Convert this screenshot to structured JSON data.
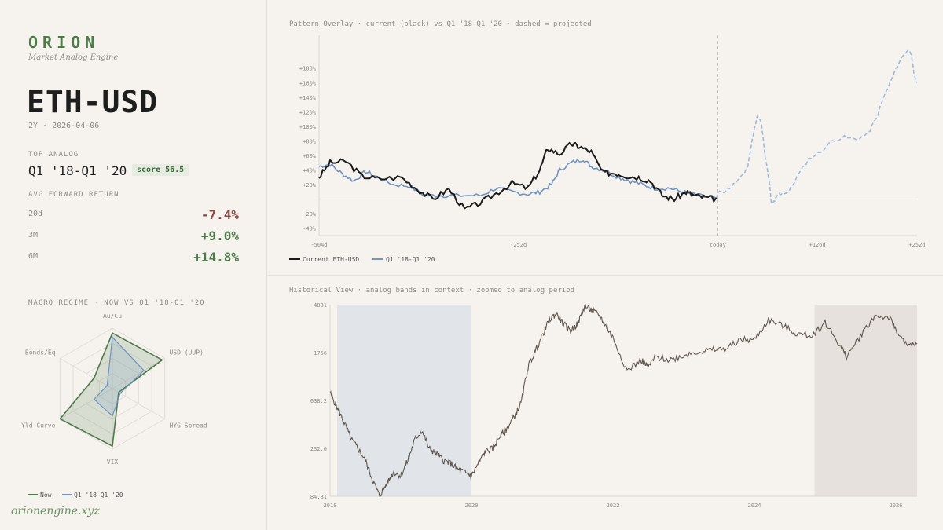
{
  "brand": {
    "name": "ORION",
    "tagline": "Market Analog Engine",
    "site": "orionengine.xyz"
  },
  "asset": {
    "ticker": "ETH-USD",
    "meta": "2Y · 2026-04-06"
  },
  "top_analog": {
    "label": "TOP ANALOG",
    "name": "Q1 '18-Q1 '20",
    "score": "score 56.5"
  },
  "forward": {
    "label": "AVG FORWARD RETURN",
    "rows": [
      {
        "k": "20d",
        "v": "-7.4%"
      },
      {
        "k": "3M",
        "v": "+9.0%"
      },
      {
        "k": "6M",
        "v": "+14.8%"
      }
    ]
  },
  "colors": {
    "now": "#4e7a4a",
    "analog": "#6f93c2",
    "current": "#1a1a1a",
    "historical": "#5f564e",
    "neg": "#8b4a4a",
    "pos": "#4e7a4a"
  },
  "chart_data": [
    {
      "type": "radar",
      "title": "MACRO REGIME · NOW VS Q1 '18-Q1 '20",
      "axes": [
        "Au/Cu",
        "USD (UUP)",
        "HYG Spread",
        "VIX",
        "Yld Curve",
        "Bonds/Eq"
      ],
      "series": [
        {
          "name": "Now",
          "values": [
            0.92,
            0.95,
            0.12,
            0.95,
            1.0,
            0.35
          ]
        },
        {
          "name": "Q1 '18-Q1 '20",
          "values": [
            0.85,
            0.6,
            0.15,
            0.45,
            0.35,
            0.1
          ]
        }
      ],
      "legend": [
        "Now",
        "Q1 '18-Q1 '20"
      ]
    },
    {
      "type": "line",
      "title": "Pattern Overlay · current (black) vs Q1 '18-Q1 '20 · dashed = projected",
      "xlim": [
        -504,
        252
      ],
      "ylim": [
        -50,
        225
      ],
      "xticks": [
        {
          "v": -504,
          "l": "-504d"
        },
        {
          "v": -252,
          "l": "-252d"
        },
        {
          "v": 0,
          "l": "today"
        },
        {
          "v": 126,
          "l": "+126d"
        },
        {
          "v": 252,
          "l": "+252d"
        }
      ],
      "yticks": [
        {
          "v": 180,
          "l": "+180%"
        },
        {
          "v": 160,
          "l": "+160%"
        },
        {
          "v": 140,
          "l": "+140%"
        },
        {
          "v": 120,
          "l": "+120%"
        },
        {
          "v": 100,
          "l": "+100%"
        },
        {
          "v": 80,
          "l": "+80%"
        },
        {
          "v": 60,
          "l": "+60%"
        },
        {
          "v": 40,
          "l": "+40%"
        },
        {
          "v": 20,
          "l": "+20%"
        },
        {
          "v": -20,
          "l": "-20%"
        },
        {
          "v": -40,
          "l": "-40%"
        }
      ],
      "series": [
        {
          "name": "Current ETH-USD",
          "x": [
            -504,
            -490,
            -470,
            -450,
            -430,
            -400,
            -380,
            -360,
            -340,
            -320,
            -300,
            -280,
            -260,
            -240,
            -225,
            -215,
            -200,
            -185,
            -175,
            -160,
            -145,
            -130,
            -115,
            -100,
            -85,
            -70,
            -55,
            -40,
            -30,
            -15,
            0
          ],
          "y": [
            30,
            50,
            52,
            32,
            28,
            30,
            14,
            0,
            14,
            -14,
            -5,
            8,
            22,
            15,
            40,
            70,
            62,
            76,
            72,
            65,
            36,
            36,
            32,
            30,
            25,
            5,
            0,
            10,
            5,
            2,
            0
          ]
        },
        {
          "name": "Q1 '18-Q1 '20",
          "x": [
            -504,
            -490,
            -475,
            -460,
            -445,
            -430,
            -410,
            -390,
            -370,
            -350,
            -330,
            -300,
            -280,
            -260,
            -240,
            -225,
            -210,
            -200,
            -185,
            -170,
            -160,
            -145,
            -125,
            -110,
            -95,
            -80,
            -60,
            -45,
            -25,
            -10,
            0
          ],
          "y": [
            45,
            48,
            35,
            25,
            38,
            30,
            20,
            18,
            5,
            5,
            5,
            5,
            15,
            10,
            7,
            10,
            20,
            40,
            50,
            55,
            45,
            40,
            30,
            25,
            20,
            15,
            15,
            10,
            5,
            2,
            0
          ]
        },
        {
          "name": "projected",
          "x": [
            0,
            10,
            20,
            30,
            38,
            45,
            50,
            55,
            60,
            65,
            68,
            72,
            76,
            80,
            90,
            100,
            115,
            130,
            145,
            160,
            175,
            190,
            200,
            210,
            220,
            230,
            240,
            245,
            248,
            252
          ],
          "y": [
            8,
            12,
            20,
            30,
            45,
            90,
            115,
            105,
            60,
            25,
            -8,
            -2,
            5,
            8,
            10,
            30,
            55,
            65,
            80,
            85,
            82,
            90,
            110,
            140,
            165,
            190,
            205,
            200,
            170,
            160
          ],
          "dashed": true
        }
      ],
      "legend": [
        "Current ETH-USD",
        "Q1 '18-Q1 '20"
      ]
    },
    {
      "type": "line",
      "title": "Historical View · analog bands in context · zoomed to analog period",
      "yscale": "log",
      "ylim": [
        84.31,
        4831
      ],
      "yticks": [
        "4831",
        "1756",
        "638.2",
        "232.0",
        "84.31"
      ],
      "xticks": [
        "2018",
        "2020",
        "2022",
        "2024",
        "2026"
      ],
      "xlim": [
        2018.0,
        2026.3
      ],
      "bands": [
        {
          "from": 2018.1,
          "to": 2020.0,
          "color": "#e1e5e9"
        },
        {
          "from": 2024.85,
          "to": 2026.3,
          "color": "#e6e1dc"
        }
      ],
      "series": [
        {
          "name": "ETH-USD",
          "x": [
            2018.0,
            2018.1,
            2018.2,
            2018.3,
            2018.4,
            2018.5,
            2018.6,
            2018.7,
            2018.8,
            2018.9,
            2019.0,
            2019.1,
            2019.2,
            2019.3,
            2019.4,
            2019.5,
            2019.6,
            2019.7,
            2019.8,
            2019.9,
            2020.0,
            2020.1,
            2020.2,
            2020.3,
            2020.4,
            2020.5,
            2020.6,
            2020.7,
            2020.8,
            2020.9,
            2021.0,
            2021.1,
            2021.2,
            2021.3,
            2021.4,
            2021.5,
            2021.6,
            2021.7,
            2021.8,
            2021.9,
            2022.0,
            2022.2,
            2022.4,
            2022.5,
            2022.6,
            2022.8,
            2023.0,
            2023.2,
            2023.4,
            2023.6,
            2023.8,
            2024.0,
            2024.2,
            2024.4,
            2024.6,
            2024.8,
            2025.0,
            2025.2,
            2025.3,
            2025.5,
            2025.7,
            2025.9,
            2026.0,
            2026.15,
            2026.3
          ],
          "y": [
            750,
            550,
            400,
            280,
            230,
            180,
            120,
            85,
            110,
            140,
            130,
            180,
            280,
            340,
            230,
            210,
            180,
            170,
            150,
            140,
            130,
            170,
            220,
            230,
            300,
            350,
            450,
            600,
            1300,
            1800,
            2500,
            3500,
            4000,
            3200,
            2800,
            3200,
            4700,
            4300,
            3900,
            3100,
            2400,
            1200,
            1500,
            1300,
            1600,
            1500,
            1650,
            1800,
            1850,
            1900,
            2300,
            2300,
            3500,
            3100,
            2600,
            2500,
            3300,
            2100,
            1600,
            2500,
            3800,
            3700,
            2900,
            2000,
            2100
          ]
        }
      ]
    }
  ]
}
